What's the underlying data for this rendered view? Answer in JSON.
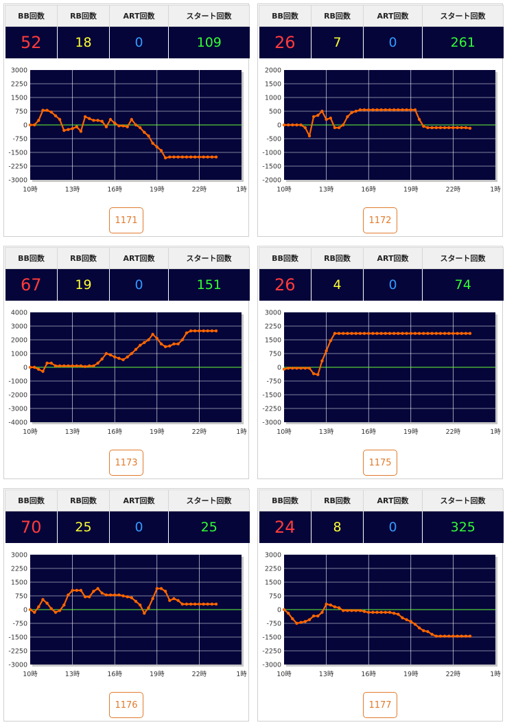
{
  "headers": [
    "BB回数",
    "RB回数",
    "ART回数",
    "スタート回数"
  ],
  "colors": {
    "bb": "#ff3b3b",
    "rb": "#ffff33",
    "art": "#3399ff",
    "start": "#33ff33",
    "line": "#ff6600",
    "zero": "#66ff33",
    "plot_bg": "#05053a"
  },
  "cards": [
    {
      "id": "1171",
      "bb": "52",
      "rb": "18",
      "art": "0",
      "start": "109",
      "chart_data": {
        "type": "line",
        "x_tick_labels": [
          "10時",
          "13時",
          "16時",
          "19時",
          "22時",
          "1時"
        ],
        "xlim": [
          10,
          25
        ],
        "y_tick_labels": [
          "3000",
          "2250",
          "1500",
          "750",
          "0",
          "-750",
          "-1500",
          "-2250",
          "-3000"
        ],
        "ylim": [
          -3000,
          3000
        ],
        "grid": true,
        "series": [
          {
            "x": [
              10,
              10.3,
              10.6,
              10.9,
              11.2,
              11.5,
              11.8,
              12.1,
              12.4,
              12.7,
              13,
              13.3,
              13.6,
              13.9,
              14.2,
              14.5,
              14.8,
              15.1,
              15.4,
              15.7,
              16,
              16.3,
              16.6,
              16.9,
              17.2,
              17.5,
              17.8,
              18.1,
              18.4,
              18.7,
              19,
              19.3,
              19.6,
              19.9,
              20.2,
              20.5,
              20.8,
              21.1,
              21.4,
              21.7,
              22,
              22.3,
              22.6,
              22.9,
              23.2
            ],
            "y": [
              0,
              0,
              250,
              800,
              800,
              700,
              500,
              300,
              -300,
              -250,
              -200,
              -100,
              -350,
              450,
              350,
              250,
              250,
              200,
              -100,
              300,
              100,
              -50,
              -50,
              -100,
              300,
              0,
              -150,
              -400,
              -600,
              -1000,
              -1200,
              -1400,
              -1800,
              -1750,
              -1750,
              -1750,
              -1750,
              -1750,
              -1750,
              -1750,
              -1750,
              -1750,
              -1750,
              -1750,
              -1750
            ]
          }
        ]
      }
    },
    {
      "id": "1172",
      "bb": "26",
      "rb": "7",
      "art": "0",
      "start": "261",
      "chart_data": {
        "type": "line",
        "x_tick_labels": [
          "10時",
          "13時",
          "16時",
          "19時",
          "22時",
          "1時"
        ],
        "xlim": [
          10,
          25
        ],
        "y_tick_labels": [
          "2000",
          "1500",
          "1000",
          "500",
          "0",
          "-500",
          "-1000",
          "-1500",
          "-2000"
        ],
        "ylim": [
          -2000,
          2000
        ],
        "grid": true,
        "series": [
          {
            "x": [
              10,
              10.3,
              10.6,
              10.9,
              11.2,
              11.5,
              11.8,
              12.1,
              12.4,
              12.7,
              13,
              13.3,
              13.6,
              13.9,
              14.2,
              14.5,
              14.8,
              15.1,
              15.4,
              15.7,
              16,
              16.3,
              16.6,
              16.9,
              17.2,
              17.5,
              17.8,
              18.1,
              18.4,
              18.7,
              19,
              19.3,
              19.6,
              19.9,
              20.2,
              20.5,
              20.8,
              21.1,
              21.4,
              21.7,
              22,
              22.3,
              22.6,
              22.9,
              23.2
            ],
            "y": [
              0,
              0,
              0,
              0,
              0,
              -100,
              -400,
              300,
              350,
              500,
              200,
              250,
              -100,
              -100,
              0,
              300,
              450,
              500,
              550,
              550,
              550,
              550,
              550,
              550,
              550,
              550,
              550,
              550,
              550,
              550,
              550,
              550,
              200,
              -50,
              -100,
              -100,
              -100,
              -100,
              -100,
              -100,
              -100,
              -100,
              -100,
              -100,
              -120
            ]
          }
        ]
      }
    },
    {
      "id": "1173",
      "bb": "67",
      "rb": "19",
      "art": "0",
      "start": "151",
      "chart_data": {
        "type": "line",
        "x_tick_labels": [
          "10時",
          "13時",
          "16時",
          "19時",
          "22時",
          "1時"
        ],
        "xlim": [
          10,
          25
        ],
        "y_tick_labels": [
          "4000",
          "3000",
          "2000",
          "1000",
          "0",
          "-1000",
          "-2000",
          "-3000",
          "-4000"
        ],
        "ylim": [
          -4000,
          4000
        ],
        "grid": true,
        "series": [
          {
            "x": [
              10,
              10.3,
              10.6,
              10.9,
              11.2,
              11.5,
              11.8,
              12.1,
              12.4,
              12.7,
              13,
              13.3,
              13.6,
              13.9,
              14.2,
              14.5,
              14.8,
              15.1,
              15.4,
              15.7,
              16,
              16.3,
              16.6,
              16.9,
              17.2,
              17.5,
              17.8,
              18.1,
              18.4,
              18.7,
              19,
              19.3,
              19.6,
              19.9,
              20.2,
              20.5,
              20.8,
              21.1,
              21.4,
              21.7,
              22,
              22.3,
              22.6,
              22.9,
              23.2
            ],
            "y": [
              0,
              0,
              -150,
              -300,
              300,
              300,
              100,
              100,
              100,
              100,
              100,
              100,
              100,
              50,
              100,
              100,
              300,
              600,
              1000,
              900,
              750,
              650,
              550,
              750,
              1000,
              1300,
              1600,
              1800,
              2000,
              2400,
              2100,
              1700,
              1500,
              1550,
              1700,
              1700,
              2000,
              2500,
              2650,
              2650,
              2650,
              2650,
              2650,
              2650,
              2650
            ]
          }
        ]
      }
    },
    {
      "id": "1175",
      "bb": "26",
      "rb": "4",
      "art": "0",
      "start": "74",
      "chart_data": {
        "type": "line",
        "x_tick_labels": [
          "10時",
          "13時",
          "16時",
          "19時",
          "22時",
          "1時"
        ],
        "xlim": [
          10,
          25
        ],
        "y_tick_labels": [
          "3000",
          "2250",
          "1500",
          "750",
          "0",
          "-750",
          "-1500",
          "-2250",
          "-3000"
        ],
        "ylim": [
          -3000,
          3000
        ],
        "grid": true,
        "series": [
          {
            "x": [
              10,
              10.3,
              10.6,
              10.9,
              11.2,
              11.5,
              11.8,
              12.1,
              12.4,
              12.7,
              13,
              13.3,
              13.6,
              13.9,
              14.2,
              14.5,
              14.8,
              15.1,
              15.4,
              15.7,
              16,
              16.3,
              16.6,
              16.9,
              17.2,
              17.5,
              17.8,
              18.1,
              18.4,
              18.7,
              19,
              19.3,
              19.6,
              19.9,
              20.2,
              20.5,
              20.8,
              21.1,
              21.4,
              21.7,
              22,
              22.3,
              22.6,
              22.9,
              23.2
            ],
            "y": [
              -100,
              -50,
              -50,
              -50,
              -50,
              -50,
              -50,
              -350,
              -400,
              350,
              900,
              1450,
              1850,
              1850,
              1850,
              1850,
              1850,
              1850,
              1850,
              1850,
              1850,
              1850,
              1850,
              1850,
              1850,
              1850,
              1850,
              1850,
              1850,
              1850,
              1850,
              1850,
              1850,
              1850,
              1850,
              1850,
              1850,
              1850,
              1850,
              1850,
              1850,
              1850,
              1850,
              1850,
              1850
            ]
          }
        ]
      }
    },
    {
      "id": "1176",
      "bb": "70",
      "rb": "25",
      "art": "0",
      "start": "25",
      "chart_data": {
        "type": "line",
        "x_tick_labels": [
          "10時",
          "13時",
          "16時",
          "19時",
          "22時",
          "1時"
        ],
        "xlim": [
          10,
          25
        ],
        "y_tick_labels": [
          "3000",
          "2250",
          "1500",
          "750",
          "0",
          "-750",
          "-1500",
          "-2250",
          "-3000"
        ],
        "ylim": [
          -3000,
          3000
        ],
        "grid": true,
        "series": [
          {
            "x": [
              10,
              10.3,
              10.6,
              10.9,
              11.2,
              11.5,
              11.8,
              12.1,
              12.4,
              12.7,
              13,
              13.3,
              13.6,
              13.9,
              14.2,
              14.5,
              14.8,
              15.1,
              15.4,
              15.7,
              16,
              16.3,
              16.6,
              16.9,
              17.2,
              17.5,
              17.8,
              18.1,
              18.4,
              18.7,
              19,
              19.3,
              19.6,
              19.9,
              20.2,
              20.5,
              20.8,
              21.1,
              21.4,
              21.7,
              22,
              22.3,
              22.6,
              22.9,
              23.2
            ],
            "y": [
              0,
              -150,
              150,
              550,
              350,
              50,
              -150,
              -50,
              250,
              800,
              1050,
              1050,
              1050,
              700,
              700,
              1000,
              1150,
              900,
              800,
              800,
              800,
              800,
              750,
              700,
              650,
              450,
              250,
              -200,
              100,
              600,
              1150,
              1150,
              1000,
              500,
              600,
              500,
              300,
              300,
              300,
              300,
              300,
              300,
              300,
              300,
              300
            ]
          }
        ]
      }
    },
    {
      "id": "1177",
      "bb": "24",
      "rb": "8",
      "art": "0",
      "start": "325",
      "chart_data": {
        "type": "line",
        "x_tick_labels": [
          "10時",
          "13時",
          "16時",
          "19時",
          "22時",
          "1時"
        ],
        "xlim": [
          10,
          25
        ],
        "y_tick_labels": [
          "3000",
          "2250",
          "1500",
          "750",
          "0",
          "-750",
          "-1500",
          "-2250",
          "-3000"
        ],
        "ylim": [
          -3000,
          3000
        ],
        "grid": true,
        "series": [
          {
            "x": [
              10,
              10.3,
              10.6,
              10.9,
              11.2,
              11.5,
              11.8,
              12.1,
              12.4,
              12.7,
              13,
              13.3,
              13.6,
              13.9,
              14.2,
              14.5,
              14.8,
              15.1,
              15.4,
              15.7,
              16,
              16.3,
              16.6,
              16.9,
              17.2,
              17.5,
              17.8,
              18.1,
              18.4,
              18.7,
              19,
              19.3,
              19.6,
              19.9,
              20.2,
              20.5,
              20.8,
              21.1,
              21.4,
              21.7,
              22,
              22.3,
              22.6,
              22.9,
              23.2
            ],
            "y": [
              0,
              -200,
              -500,
              -750,
              -700,
              -650,
              -550,
              -350,
              -350,
              -150,
              300,
              250,
              150,
              100,
              -50,
              -50,
              -50,
              -50,
              -50,
              -100,
              -150,
              -150,
              -150,
              -150,
              -150,
              -150,
              -200,
              -250,
              -450,
              -550,
              -650,
              -800,
              -1000,
              -1150,
              -1200,
              -1350,
              -1450,
              -1450,
              -1450,
              -1450,
              -1450,
              -1450,
              -1450,
              -1450,
              -1450
            ]
          }
        ]
      }
    }
  ]
}
